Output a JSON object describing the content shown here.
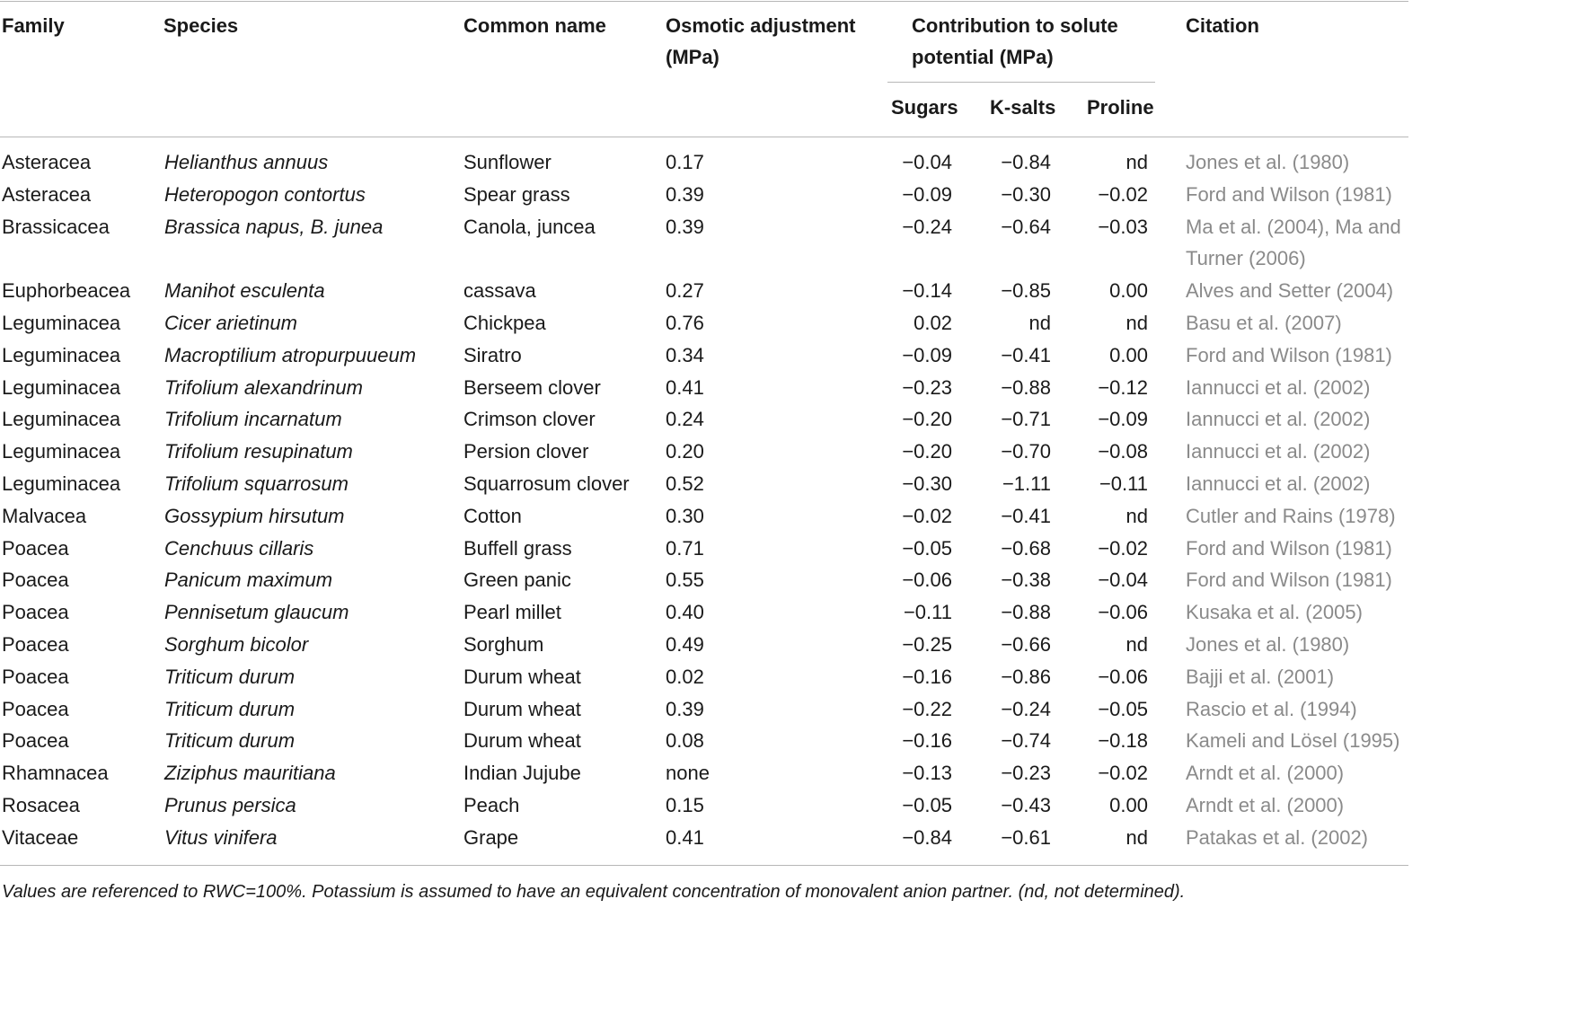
{
  "header": {
    "family": "Family",
    "species": "Species",
    "common_name": "Common name",
    "osmotic": "Osmotic adjustment (MPa)",
    "contribution": "Contribution to solute potential (MPa)",
    "sugars": "Sugars",
    "ksalts": "K-salts",
    "proline": "Proline",
    "citation": "Citation"
  },
  "rows": [
    {
      "family": "Asteracea",
      "species": "Helianthus annuus",
      "common": "Sunflower",
      "osmotic": "0.17",
      "sugars": "−0.04",
      "ksalts": "−0.84",
      "proline": "nd",
      "citation": "Jones et al. (1980)"
    },
    {
      "family": "Asteracea",
      "species": "Heteropogon contortus",
      "common": "Spear grass",
      "osmotic": "0.39",
      "sugars": "−0.09",
      "ksalts": "−0.30",
      "proline": "−0.02",
      "citation": "Ford and Wilson (1981)"
    },
    {
      "family": "Brassicacea",
      "species": "Brassica napus, B. junea",
      "common": "Canola, juncea",
      "osmotic": "0.39",
      "sugars": "−0.24",
      "ksalts": "−0.64",
      "proline": "−0.03",
      "citation": "Ma et al. (2004), Ma and Turner (2006)"
    },
    {
      "family": "Euphorbeacea",
      "species": "Manihot esculenta",
      "common": "cassava",
      "osmotic": "0.27",
      "sugars": "−0.14",
      "ksalts": "−0.85",
      "proline": "0.00",
      "citation": "Alves and Setter (2004)"
    },
    {
      "family": "Leguminacea",
      "species": "Cicer arietinum",
      "common": "Chickpea",
      "osmotic": "0.76",
      "sugars": "0.02",
      "ksalts": "nd",
      "proline": "nd",
      "citation": "Basu et al. (2007)"
    },
    {
      "family": "Leguminacea",
      "species": "Macroptilium atropurpuueum",
      "common": "Siratro",
      "osmotic": "0.34",
      "sugars": "−0.09",
      "ksalts": "−0.41",
      "proline": "0.00",
      "citation": "Ford and Wilson (1981)"
    },
    {
      "family": "Leguminacea",
      "species": "Trifolium alexandrinum",
      "common": "Berseem clover",
      "osmotic": "0.41",
      "sugars": "−0.23",
      "ksalts": "−0.88",
      "proline": "−0.12",
      "citation": "Iannucci et al. (2002)"
    },
    {
      "family": "Leguminacea",
      "species": "Trifolium incarnatum",
      "common": "Crimson clover",
      "osmotic": "0.24",
      "sugars": "−0.20",
      "ksalts": "−0.71",
      "proline": "−0.09",
      "citation": "Iannucci et al. (2002)"
    },
    {
      "family": "Leguminacea",
      "species": "Trifolium resupinatum",
      "common": "Persion clover",
      "osmotic": "0.20",
      "sugars": "−0.20",
      "ksalts": "−0.70",
      "proline": "−0.08",
      "citation": "Iannucci et al. (2002)"
    },
    {
      "family": "Leguminacea",
      "species": "Trifolium squarrosum",
      "common": "Squarrosum clover",
      "osmotic": "0.52",
      "sugars": "−0.30",
      "ksalts": "−1.11",
      "proline": "−0.11",
      "citation": "Iannucci et al. (2002)"
    },
    {
      "family": "Malvacea",
      "species": "Gossypium hirsutum",
      "common": "Cotton",
      "osmotic": "0.30",
      "sugars": "−0.02",
      "ksalts": "−0.41",
      "proline": "nd",
      "citation": "Cutler and Rains (1978)"
    },
    {
      "family": "Poacea",
      "species": "Cenchuus cillaris",
      "common": "Buffell grass",
      "osmotic": "0.71",
      "sugars": "−0.05",
      "ksalts": "−0.68",
      "proline": "−0.02",
      "citation": "Ford and Wilson (1981)"
    },
    {
      "family": "Poacea",
      "species": "Panicum maximum",
      "common": "Green panic",
      "osmotic": "0.55",
      "sugars": "−0.06",
      "ksalts": "−0.38",
      "proline": "−0.04",
      "citation": "Ford and Wilson (1981)"
    },
    {
      "family": "Poacea",
      "species": "Pennisetum glaucum",
      "common": "Pearl millet",
      "osmotic": "0.40",
      "sugars": "−0.11",
      "ksalts": "−0.88",
      "proline": "−0.06",
      "citation": "Kusaka et al. (2005)"
    },
    {
      "family": "Poacea",
      "species": "Sorghum bicolor",
      "common": "Sorghum",
      "osmotic": "0.49",
      "sugars": "−0.25",
      "ksalts": "−0.66",
      "proline": "nd",
      "citation": "Jones et al. (1980)"
    },
    {
      "family": "Poacea",
      "species": "Triticum durum",
      "common": "Durum wheat",
      "osmotic": "0.02",
      "sugars": "−0.16",
      "ksalts": "−0.86",
      "proline": "−0.06",
      "citation": "Bajji et al. (2001)"
    },
    {
      "family": "Poacea",
      "species": "Triticum durum",
      "common": "Durum wheat",
      "osmotic": "0.39",
      "sugars": "−0.22",
      "ksalts": "−0.24",
      "proline": "−0.05",
      "citation": "Rascio et al. (1994)"
    },
    {
      "family": "Poacea",
      "species": "Triticum durum",
      "common": "Durum wheat",
      "osmotic": "0.08",
      "sugars": "−0.16",
      "ksalts": "−0.74",
      "proline": "−0.18",
      "citation": "Kameli and Lösel (1995)"
    },
    {
      "family": "Rhamnacea",
      "species": "Ziziphus mauritiana",
      "common": "Indian Jujube",
      "osmotic": "none",
      "sugars": "−0.13",
      "ksalts": "−0.23",
      "proline": "−0.02",
      "citation": "Arndt et al. (2000)"
    },
    {
      "family": "Rosacea",
      "species": "Prunus persica",
      "common": "Peach",
      "osmotic": "0.15",
      "sugars": "−0.05",
      "ksalts": "−0.43",
      "proline": "0.00",
      "citation": "Arndt et al. (2000)"
    },
    {
      "family": "Vitaceae",
      "species": "Vitus vinifera",
      "common": "Grape",
      "osmotic": "0.41",
      "sugars": "−0.84",
      "ksalts": "−0.61",
      "proline": "nd",
      "citation": "Patakas et al. (2002)"
    }
  ],
  "footnote": "Values are referenced to RWC=100%. Potassium is assumed to have an equivalent concentration of monovalent anion partner. (nd, not determined)."
}
